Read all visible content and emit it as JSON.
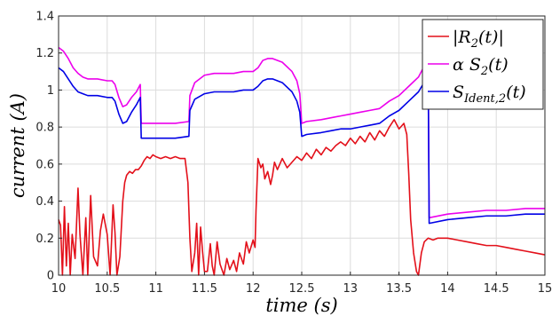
{
  "chart_data": {
    "type": "line",
    "xlabel": "time (s)",
    "ylabel": "current (A)",
    "xlim": [
      10,
      15
    ],
    "ylim": [
      0,
      1.4
    ],
    "xticks": [
      "10",
      "10.5",
      "11",
      "11.5",
      "12",
      "12.5",
      "13",
      "13.5",
      "14",
      "14.5",
      "15"
    ],
    "yticks": [
      "0",
      "0.2",
      "0.4",
      "0.6",
      "0.8",
      "1",
      "1.2",
      "1.4"
    ],
    "grid": true,
    "legend_position": "top-right",
    "series": [
      {
        "name": "|R2(t)|",
        "name_main": "|R",
        "name_sub": "2",
        "name_tail": "(t)|",
        "color": "#e3101a",
        "points": [
          [
            10,
            0.3
          ],
          [
            10.02,
            0.27
          ],
          [
            10.04,
            0.0
          ],
          [
            10.06,
            0.37
          ],
          [
            10.08,
            0.05
          ],
          [
            10.1,
            0.28
          ],
          [
            10.12,
            0.0
          ],
          [
            10.14,
            0.22
          ],
          [
            10.17,
            0.09
          ],
          [
            10.2,
            0.47
          ],
          [
            10.22,
            0.22
          ],
          [
            10.25,
            0.0
          ],
          [
            10.28,
            0.31
          ],
          [
            10.3,
            0.0
          ],
          [
            10.33,
            0.43
          ],
          [
            10.36,
            0.1
          ],
          [
            10.4,
            0.05
          ],
          [
            10.43,
            0.24
          ],
          [
            10.46,
            0.33
          ],
          [
            10.5,
            0.22
          ],
          [
            10.53,
            0.0
          ],
          [
            10.56,
            0.38
          ],
          [
            10.58,
            0.23
          ],
          [
            10.6,
            0.0
          ],
          [
            10.63,
            0.1
          ],
          [
            10.66,
            0.4
          ],
          [
            10.68,
            0.5
          ],
          [
            10.7,
            0.54
          ],
          [
            10.73,
            0.56
          ],
          [
            10.76,
            0.55
          ],
          [
            10.79,
            0.57
          ],
          [
            10.82,
            0.57
          ],
          [
            10.85,
            0.59
          ],
          [
            10.88,
            0.62
          ],
          [
            10.91,
            0.64
          ],
          [
            10.94,
            0.63
          ],
          [
            10.97,
            0.65
          ],
          [
            11.0,
            0.64
          ],
          [
            11.05,
            0.63
          ],
          [
            11.1,
            0.64
          ],
          [
            11.15,
            0.63
          ],
          [
            11.2,
            0.64
          ],
          [
            11.25,
            0.63
          ],
          [
            11.3,
            0.63
          ],
          [
            11.33,
            0.5
          ],
          [
            11.35,
            0.2
          ],
          [
            11.37,
            0.02
          ],
          [
            11.4,
            0.12
          ],
          [
            11.42,
            0.28
          ],
          [
            11.44,
            0.0
          ],
          [
            11.46,
            0.26
          ],
          [
            11.48,
            0.13
          ],
          [
            11.5,
            0.02
          ],
          [
            11.53,
            0.02
          ],
          [
            11.56,
            0.17
          ],
          [
            11.58,
            0.05
          ],
          [
            11.6,
            0.0
          ],
          [
            11.63,
            0.18
          ],
          [
            11.66,
            0.06
          ],
          [
            11.7,
            0.0
          ],
          [
            11.73,
            0.09
          ],
          [
            11.76,
            0.03
          ],
          [
            11.8,
            0.08
          ],
          [
            11.83,
            0.02
          ],
          [
            11.86,
            0.12
          ],
          [
            11.9,
            0.06
          ],
          [
            11.93,
            0.18
          ],
          [
            11.96,
            0.12
          ],
          [
            12.0,
            0.19
          ],
          [
            12.02,
            0.15
          ],
          [
            12.03,
            0.35
          ],
          [
            12.05,
            0.63
          ],
          [
            12.08,
            0.58
          ],
          [
            12.1,
            0.6
          ],
          [
            12.12,
            0.52
          ],
          [
            12.15,
            0.56
          ],
          [
            12.18,
            0.49
          ],
          [
            12.2,
            0.54
          ],
          [
            12.22,
            0.61
          ],
          [
            12.25,
            0.57
          ],
          [
            12.3,
            0.63
          ],
          [
            12.35,
            0.58
          ],
          [
            12.4,
            0.61
          ],
          [
            12.45,
            0.64
          ],
          [
            12.5,
            0.62
          ],
          [
            12.55,
            0.66
          ],
          [
            12.6,
            0.63
          ],
          [
            12.65,
            0.68
          ],
          [
            12.7,
            0.65
          ],
          [
            12.75,
            0.69
          ],
          [
            12.8,
            0.67
          ],
          [
            12.85,
            0.7
          ],
          [
            12.9,
            0.72
          ],
          [
            12.95,
            0.7
          ],
          [
            13.0,
            0.74
          ],
          [
            13.05,
            0.71
          ],
          [
            13.1,
            0.75
          ],
          [
            13.15,
            0.72
          ],
          [
            13.2,
            0.77
          ],
          [
            13.25,
            0.73
          ],
          [
            13.3,
            0.78
          ],
          [
            13.35,
            0.75
          ],
          [
            13.4,
            0.8
          ],
          [
            13.45,
            0.84
          ],
          [
            13.5,
            0.79
          ],
          [
            13.55,
            0.82
          ],
          [
            13.58,
            0.76
          ],
          [
            13.6,
            0.55
          ],
          [
            13.62,
            0.3
          ],
          [
            13.65,
            0.12
          ],
          [
            13.68,
            0.02
          ],
          [
            13.7,
            0.0
          ],
          [
            13.73,
            0.12
          ],
          [
            13.76,
            0.18
          ],
          [
            13.8,
            0.2
          ],
          [
            13.85,
            0.19
          ],
          [
            13.9,
            0.2
          ],
          [
            14.0,
            0.2
          ],
          [
            14.1,
            0.19
          ],
          [
            14.2,
            0.18
          ],
          [
            14.3,
            0.17
          ],
          [
            14.4,
            0.16
          ],
          [
            14.5,
            0.16
          ],
          [
            14.6,
            0.15
          ],
          [
            14.7,
            0.14
          ],
          [
            14.8,
            0.13
          ],
          [
            14.9,
            0.12
          ],
          [
            15.0,
            0.11
          ]
        ]
      },
      {
        "name": "α S2(t)",
        "name_main": "α S",
        "name_sub": "2",
        "name_tail": "(t)",
        "color": "#ec00ec",
        "points": [
          [
            10,
            1.23
          ],
          [
            10.05,
            1.21
          ],
          [
            10.1,
            1.17
          ],
          [
            10.15,
            1.12
          ],
          [
            10.2,
            1.09
          ],
          [
            10.25,
            1.07
          ],
          [
            10.3,
            1.06
          ],
          [
            10.4,
            1.06
          ],
          [
            10.5,
            1.05
          ],
          [
            10.55,
            1.05
          ],
          [
            10.58,
            1.03
          ],
          [
            10.62,
            0.96
          ],
          [
            10.66,
            0.91
          ],
          [
            10.7,
            0.92
          ],
          [
            10.75,
            0.96
          ],
          [
            10.8,
            0.99
          ],
          [
            10.84,
            1.03
          ],
          [
            10.85,
            0.82
          ],
          [
            11.0,
            0.82
          ],
          [
            11.2,
            0.82
          ],
          [
            11.34,
            0.83
          ],
          [
            11.35,
            0.97
          ],
          [
            11.4,
            1.04
          ],
          [
            11.5,
            1.08
          ],
          [
            11.6,
            1.09
          ],
          [
            11.8,
            1.09
          ],
          [
            11.9,
            1.1
          ],
          [
            12.0,
            1.1
          ],
          [
            12.05,
            1.12
          ],
          [
            12.1,
            1.16
          ],
          [
            12.15,
            1.17
          ],
          [
            12.2,
            1.17
          ],
          [
            12.3,
            1.15
          ],
          [
            12.4,
            1.1
          ],
          [
            12.45,
            1.05
          ],
          [
            12.48,
            0.98
          ],
          [
            12.5,
            0.82
          ],
          [
            12.55,
            0.83
          ],
          [
            12.7,
            0.84
          ],
          [
            12.8,
            0.85
          ],
          [
            12.9,
            0.86
          ],
          [
            13.0,
            0.87
          ],
          [
            13.1,
            0.88
          ],
          [
            13.2,
            0.89
          ],
          [
            13.3,
            0.9
          ],
          [
            13.4,
            0.94
          ],
          [
            13.5,
            0.97
          ],
          [
            13.6,
            1.02
          ],
          [
            13.7,
            1.07
          ],
          [
            13.78,
            1.15
          ],
          [
            13.8,
            1.19
          ],
          [
            13.81,
            0.31
          ],
          [
            14.0,
            0.33
          ],
          [
            14.2,
            0.34
          ],
          [
            14.4,
            0.35
          ],
          [
            14.6,
            0.35
          ],
          [
            14.8,
            0.36
          ],
          [
            15.0,
            0.36
          ]
        ]
      },
      {
        "name": "SIdent,2(t)",
        "name_main": "S",
        "name_sub": "Ident,2",
        "name_tail": "(t)",
        "color": "#0000e6",
        "points": [
          [
            10,
            1.12
          ],
          [
            10.05,
            1.1
          ],
          [
            10.1,
            1.06
          ],
          [
            10.15,
            1.02
          ],
          [
            10.2,
            0.99
          ],
          [
            10.25,
            0.98
          ],
          [
            10.3,
            0.97
          ],
          [
            10.4,
            0.97
          ],
          [
            10.5,
            0.96
          ],
          [
            10.55,
            0.96
          ],
          [
            10.58,
            0.94
          ],
          [
            10.62,
            0.87
          ],
          [
            10.66,
            0.82
          ],
          [
            10.7,
            0.83
          ],
          [
            10.75,
            0.88
          ],
          [
            10.8,
            0.92
          ],
          [
            10.84,
            0.96
          ],
          [
            10.85,
            0.74
          ],
          [
            11.0,
            0.74
          ],
          [
            11.2,
            0.74
          ],
          [
            11.34,
            0.75
          ],
          [
            11.35,
            0.89
          ],
          [
            11.4,
            0.95
          ],
          [
            11.5,
            0.98
          ],
          [
            11.6,
            0.99
          ],
          [
            11.8,
            0.99
          ],
          [
            11.9,
            1.0
          ],
          [
            12.0,
            1.0
          ],
          [
            12.05,
            1.02
          ],
          [
            12.1,
            1.05
          ],
          [
            12.15,
            1.06
          ],
          [
            12.2,
            1.06
          ],
          [
            12.3,
            1.04
          ],
          [
            12.4,
            0.99
          ],
          [
            12.45,
            0.94
          ],
          [
            12.48,
            0.88
          ],
          [
            12.5,
            0.75
          ],
          [
            12.55,
            0.76
          ],
          [
            12.7,
            0.77
          ],
          [
            12.8,
            0.78
          ],
          [
            12.9,
            0.79
          ],
          [
            13.0,
            0.79
          ],
          [
            13.1,
            0.8
          ],
          [
            13.2,
            0.81
          ],
          [
            13.3,
            0.82
          ],
          [
            13.4,
            0.86
          ],
          [
            13.5,
            0.89
          ],
          [
            13.6,
            0.94
          ],
          [
            13.7,
            0.99
          ],
          [
            13.78,
            1.06
          ],
          [
            13.8,
            1.09
          ],
          [
            13.81,
            0.28
          ],
          [
            14.0,
            0.3
          ],
          [
            14.2,
            0.31
          ],
          [
            14.4,
            0.32
          ],
          [
            14.6,
            0.32
          ],
          [
            14.8,
            0.33
          ],
          [
            15.0,
            0.33
          ]
        ]
      }
    ]
  }
}
